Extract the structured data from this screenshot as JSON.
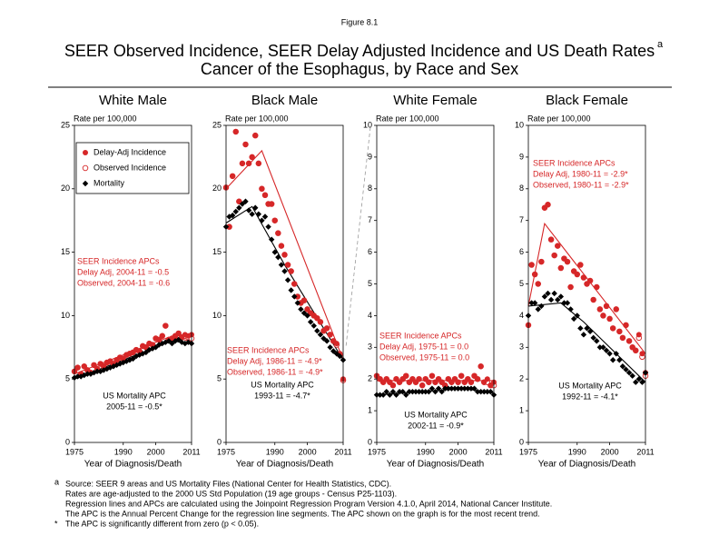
{
  "figure_label": "Figure 8.1",
  "title": [
    "SEER Observed Incidence, SEER Delay Adjusted Incidence and US Death Rates",
    "Cancer of the Esophagus, by Race and Sex"
  ],
  "title_superscript": "a",
  "footnotes": [
    {
      "marker": "a",
      "lines": [
        "Source: SEER 9 areas and US Mortality Files (National Center for Health Statistics, CDC).",
        "Rates are age-adjusted to the 2000 US Std Population (19 age groups - Census P25-1103).",
        "Regression lines and APCs are calculated using the Joinpoint Regression Program Version 4.1.0, April 2014, National Cancer Institute.",
        "The APC is the Annual Percent Change for the regression line segments. The APC shown on the graph is for the most recent trend."
      ]
    },
    {
      "marker": "*",
      "lines": [
        "The APC is significantly different from zero (p < 0.05)."
      ]
    }
  ],
  "chart_data": [
    {
      "type": "scatter",
      "title": "White Male",
      "ylabel": "Rate per 100,000",
      "xlabel": "Year of Diagnosis/Death",
      "xlim": [
        1975,
        2011
      ],
      "xticks": [
        1975,
        1990,
        2000,
        2011
      ],
      "ylim": [
        0,
        25
      ],
      "yticks": [
        0,
        5,
        10,
        15,
        20,
        25
      ],
      "legend": true,
      "legend_position": "upper left",
      "x": [
        1975,
        1976,
        1977,
        1978,
        1979,
        1980,
        1981,
        1982,
        1983,
        1984,
        1985,
        1986,
        1987,
        1988,
        1989,
        1990,
        1991,
        1992,
        1993,
        1994,
        1995,
        1996,
        1997,
        1998,
        1999,
        2000,
        2001,
        2002,
        2003,
        2004,
        2005,
        2006,
        2007,
        2008,
        2009,
        2010,
        2011
      ],
      "series": [
        {
          "name": "Delay-Adj Incidence",
          "color": "#d62728",
          "marker": "circle",
          "values": [
            5.6,
            5.9,
            5.4,
            6.0,
            5.7,
            5.5,
            6.1,
            5.8,
            6.2,
            6.0,
            6.3,
            6.4,
            6.2,
            6.5,
            6.7,
            6.6,
            6.9,
            7.0,
            7.1,
            7.3,
            7.2,
            7.6,
            7.5,
            7.8,
            7.7,
            8.2,
            8.1,
            8.4,
            9.2,
            8.1,
            8.2,
            8.4,
            8.6,
            8.3,
            8.5,
            8.4,
            8.5
          ]
        },
        {
          "name": "Observed Incidence",
          "color": "#d62728",
          "marker": "open-circle",
          "values": [
            5.6,
            5.9,
            5.4,
            6.0,
            5.7,
            5.5,
            6.1,
            5.8,
            6.2,
            6.0,
            6.3,
            6.4,
            6.2,
            6.5,
            6.7,
            6.6,
            6.9,
            7.0,
            7.1,
            7.3,
            7.2,
            7.6,
            7.5,
            7.8,
            7.7,
            8.2,
            8.1,
            8.4,
            9.2,
            8.1,
            8.2,
            8.4,
            8.6,
            8.3,
            8.4,
            8.3,
            8.2
          ]
        },
        {
          "name": "Mortality",
          "color": "#000000",
          "marker": "diamond",
          "values": [
            5.1,
            5.2,
            5.2,
            5.3,
            5.4,
            5.4,
            5.5,
            5.6,
            5.6,
            5.7,
            5.8,
            5.9,
            6.0,
            6.1,
            6.2,
            6.3,
            6.4,
            6.5,
            6.6,
            6.8,
            6.9,
            7.0,
            7.1,
            7.3,
            7.4,
            7.5,
            7.7,
            7.8,
            7.9,
            8.0,
            7.8,
            8.0,
            8.1,
            7.9,
            7.8,
            7.9,
            7.8
          ]
        },
        {
          "color": "#d62728",
          "marker": "line",
          "x": [
            1975,
            2004,
            2011
          ],
          "values": [
            5.4,
            8.3,
            8.0
          ]
        },
        {
          "color": "#000000",
          "marker": "line",
          "x": [
            1975,
            2005,
            2011
          ],
          "values": [
            5.0,
            8.0,
            7.8
          ]
        }
      ],
      "annotations": [
        {
          "color": "#d62728",
          "lines": [
            "SEER Incidence APCs",
            "Delay Adj, 2004-11 = -0.5",
            "Observed, 2004-11 = -0.6"
          ]
        },
        {
          "color": "#000000",
          "lines": [
            "US Mortality APC",
            "2005-11 = -0.5*"
          ]
        }
      ]
    },
    {
      "type": "scatter",
      "title": "Black Male",
      "ylabel": "Rate per 100,000",
      "xlabel": "Year of Diagnosis/Death",
      "xlim": [
        1975,
        2011
      ],
      "xticks": [
        1975,
        1990,
        2000,
        2011
      ],
      "ylim": [
        0,
        25
      ],
      "yticks": [
        0,
        5,
        10,
        15,
        20,
        25
      ],
      "x": [
        1975,
        1976,
        1977,
        1978,
        1979,
        1980,
        1981,
        1982,
        1983,
        1984,
        1985,
        1986,
        1987,
        1988,
        1989,
        1990,
        1991,
        1992,
        1993,
        1994,
        1995,
        1996,
        1997,
        1998,
        1999,
        2000,
        2001,
        2002,
        2003,
        2004,
        2005,
        2006,
        2007,
        2008,
        2009,
        2010,
        2011
      ],
      "series": [
        {
          "name": "Delay-Adj Incidence",
          "color": "#d62728",
          "marker": "circle",
          "values": [
            20.1,
            17.0,
            21.0,
            24.5,
            19.0,
            22.0,
            23.5,
            22.0,
            22.5,
            24.2,
            22.0,
            20.0,
            19.5,
            18.8,
            18.8,
            17.5,
            16.5,
            15.5,
            14.8,
            14.0,
            13.5,
            12.5,
            11.5,
            11.0,
            11.2,
            10.5,
            10.2,
            10.0,
            9.8,
            9.5,
            8.8,
            9.0,
            8.5,
            8.0,
            7.8,
            7.0,
            5.0
          ]
        },
        {
          "name": "Observed Incidence",
          "color": "#d62728",
          "marker": "open-circle",
          "values": [
            20.1,
            17.0,
            21.0,
            24.5,
            19.0,
            22.0,
            23.5,
            22.0,
            22.5,
            24.2,
            22.0,
            20.0,
            19.5,
            18.8,
            18.8,
            17.5,
            16.5,
            15.5,
            14.8,
            14.0,
            13.5,
            12.5,
            11.5,
            11.0,
            11.2,
            10.5,
            10.2,
            10.0,
            9.8,
            9.5,
            8.8,
            9.0,
            8.5,
            8.0,
            7.7,
            6.9,
            4.9
          ]
        },
        {
          "name": "Mortality",
          "color": "#000000",
          "marker": "diamond",
          "values": [
            17.0,
            17.8,
            17.9,
            18.2,
            18.5,
            18.8,
            19.0,
            18.3,
            18.0,
            18.5,
            18.0,
            17.5,
            17.8,
            17.0,
            16.0,
            15.0,
            14.6,
            14.0,
            13.5,
            12.8,
            12.0,
            11.5,
            11.0,
            10.5,
            10.2,
            10.0,
            9.5,
            9.2,
            8.8,
            8.5,
            8.2,
            8.0,
            7.5,
            7.2,
            7.0,
            6.8,
            6.5
          ]
        },
        {
          "color": "#d62728",
          "marker": "line",
          "x": [
            1975,
            1986,
            2011
          ],
          "values": [
            20.0,
            23.0,
            6.5
          ]
        },
        {
          "color": "#000000",
          "marker": "line",
          "x": [
            1975,
            1983,
            1993,
            2011
          ],
          "values": [
            17.3,
            18.6,
            14.0,
            6.5
          ]
        }
      ],
      "annotations": [
        {
          "color": "#d62728",
          "lines": [
            "SEER Incidence APCs",
            "Delay Adj, 1986-11 = -4.9*",
            "Observed, 1986-11 = -4.9*"
          ]
        },
        {
          "color": "#000000",
          "lines": [
            "US Mortality APC",
            "1993-11 = -4.7*"
          ]
        }
      ]
    },
    {
      "type": "scatter",
      "title": "White Female",
      "ylabel": "Rate per 100,000",
      "xlabel": "Year of Diagnosis/Death",
      "xlim": [
        1975,
        2011
      ],
      "xticks": [
        1975,
        1990,
        2000,
        2011
      ],
      "ylim": [
        0,
        10
      ],
      "yticks": [
        0,
        1,
        2,
        3,
        4,
        5,
        6,
        7,
        8,
        9,
        10
      ],
      "x": [
        1975,
        1976,
        1977,
        1978,
        1979,
        1980,
        1981,
        1982,
        1983,
        1984,
        1985,
        1986,
        1987,
        1988,
        1989,
        1990,
        1991,
        1992,
        1993,
        1994,
        1995,
        1996,
        1997,
        1998,
        1999,
        2000,
        2001,
        2002,
        2003,
        2004,
        2005,
        2006,
        2007,
        2008,
        2009,
        2010,
        2011
      ],
      "series": [
        {
          "name": "Delay-Adj Incidence",
          "color": "#d62728",
          "marker": "circle",
          "values": [
            2.1,
            2.0,
            1.9,
            2.0,
            1.9,
            1.8,
            2.0,
            1.9,
            2.0,
            2.1,
            1.9,
            2.0,
            1.9,
            2.0,
            1.8,
            2.0,
            1.9,
            2.1,
            1.9,
            2.0,
            1.9,
            1.8,
            2.0,
            1.9,
            2.0,
            1.9,
            2.1,
            1.9,
            2.0,
            1.9,
            2.1,
            2.0,
            2.4,
            1.9,
            2.0,
            1.8,
            1.9
          ]
        },
        {
          "name": "Observed Incidence",
          "color": "#d62728",
          "marker": "open-circle",
          "values": [
            2.1,
            2.0,
            1.9,
            2.0,
            1.9,
            1.8,
            2.0,
            1.9,
            2.0,
            2.1,
            1.9,
            2.0,
            1.9,
            2.0,
            1.8,
            2.0,
            1.9,
            2.1,
            1.9,
            2.0,
            1.9,
            1.8,
            2.0,
            1.9,
            2.0,
            1.9,
            2.1,
            1.9,
            2.0,
            1.9,
            2.1,
            2.0,
            2.4,
            1.9,
            1.9,
            1.8,
            1.8
          ]
        },
        {
          "name": "Mortality",
          "color": "#000000",
          "marker": "diamond",
          "values": [
            1.5,
            1.5,
            1.5,
            1.6,
            1.5,
            1.6,
            1.5,
            1.6,
            1.6,
            1.5,
            1.6,
            1.6,
            1.6,
            1.6,
            1.6,
            1.6,
            1.6,
            1.7,
            1.6,
            1.7,
            1.6,
            1.7,
            1.7,
            1.7,
            1.7,
            1.7,
            1.7,
            1.7,
            1.7,
            1.7,
            1.7,
            1.6,
            1.6,
            1.6,
            1.6,
            1.6,
            1.5
          ]
        },
        {
          "color": "#d62728",
          "marker": "line",
          "x": [
            1975,
            2011
          ],
          "values": [
            1.95,
            1.95
          ]
        },
        {
          "color": "#000000",
          "marker": "line",
          "x": [
            1975,
            2002,
            2011
          ],
          "values": [
            1.5,
            1.7,
            1.55
          ]
        }
      ],
      "annotations": [
        {
          "color": "#d62728",
          "lines": [
            "SEER Incidence APCs",
            "Delay Adj, 1975-11 = 0.0",
            "Observed, 1975-11 = 0.0"
          ]
        },
        {
          "color": "#000000",
          "lines": [
            "US Mortality APC",
            "2002-11 = -0.9*"
          ]
        }
      ]
    },
    {
      "type": "scatter",
      "title": "Black Female",
      "ylabel": "Rate per 100,000",
      "xlabel": "Year of Diagnosis/Death",
      "xlim": [
        1975,
        2011
      ],
      "xticks": [
        1975,
        1990,
        2000,
        2011
      ],
      "ylim": [
        0,
        10
      ],
      "yticks": [
        0,
        1,
        2,
        3,
        4,
        5,
        6,
        7,
        8,
        9,
        10
      ],
      "x": [
        1975,
        1976,
        1977,
        1978,
        1979,
        1980,
        1981,
        1982,
        1983,
        1984,
        1985,
        1986,
        1987,
        1988,
        1989,
        1990,
        1991,
        1992,
        1993,
        1994,
        1995,
        1996,
        1997,
        1998,
        1999,
        2000,
        2001,
        2002,
        2003,
        2004,
        2005,
        2006,
        2007,
        2008,
        2009,
        2010,
        2011
      ],
      "series": [
        {
          "name": "Delay-Adj Incidence",
          "color": "#d62728",
          "marker": "circle",
          "values": [
            3.7,
            5.6,
            5.3,
            5.0,
            5.7,
            7.4,
            7.5,
            6.4,
            5.9,
            6.2,
            5.5,
            5.8,
            5.7,
            4.9,
            5.4,
            5.3,
            5.6,
            5.2,
            5.0,
            5.1,
            4.5,
            4.9,
            4.2,
            4.0,
            4.3,
            3.9,
            3.6,
            4.2,
            3.5,
            3.3,
            3.7,
            3.2,
            3.0,
            2.9,
            3.4,
            2.8,
            2.2
          ]
        },
        {
          "name": "Observed Incidence",
          "color": "#d62728",
          "marker": "open-circle",
          "values": [
            3.7,
            5.6,
            5.3,
            5.0,
            5.7,
            7.4,
            7.5,
            6.4,
            5.9,
            6.2,
            5.5,
            5.8,
            5.7,
            4.9,
            5.4,
            5.3,
            5.6,
            5.2,
            5.0,
            5.1,
            4.5,
            4.9,
            4.2,
            4.0,
            4.3,
            3.9,
            3.6,
            4.2,
            3.5,
            3.3,
            3.7,
            3.2,
            3.0,
            2.9,
            3.3,
            2.7,
            2.1
          ]
        },
        {
          "name": "Mortality",
          "color": "#000000",
          "marker": "diamond",
          "values": [
            4.0,
            4.4,
            4.4,
            4.2,
            4.3,
            4.6,
            4.7,
            4.5,
            4.7,
            4.5,
            4.6,
            4.4,
            4.4,
            4.2,
            3.9,
            4.0,
            3.6,
            3.4,
            3.6,
            3.5,
            3.3,
            3.2,
            3.0,
            3.0,
            2.9,
            2.8,
            2.6,
            2.8,
            2.6,
            2.4,
            2.3,
            2.2,
            2.1,
            1.9,
            2.0,
            1.9,
            2.2
          ]
        },
        {
          "color": "#d62728",
          "marker": "line",
          "x": [
            1975,
            1980,
            2011
          ],
          "values": [
            4.3,
            6.9,
            2.8
          ]
        },
        {
          "color": "#000000",
          "marker": "line",
          "x": [
            1975,
            1985,
            1992,
            2011
          ],
          "values": [
            4.3,
            4.4,
            3.8,
            1.9
          ]
        }
      ],
      "annotations": [
        {
          "color": "#d62728",
          "lines": [
            "SEER Incidence APCs",
            "Delay Adj, 1980-11 = -2.9*",
            "Observed, 1980-11 = -2.9*"
          ]
        },
        {
          "color": "#000000",
          "lines": [
            "US Mortality APC",
            "1992-11 = -4.1*"
          ]
        }
      ]
    }
  ]
}
